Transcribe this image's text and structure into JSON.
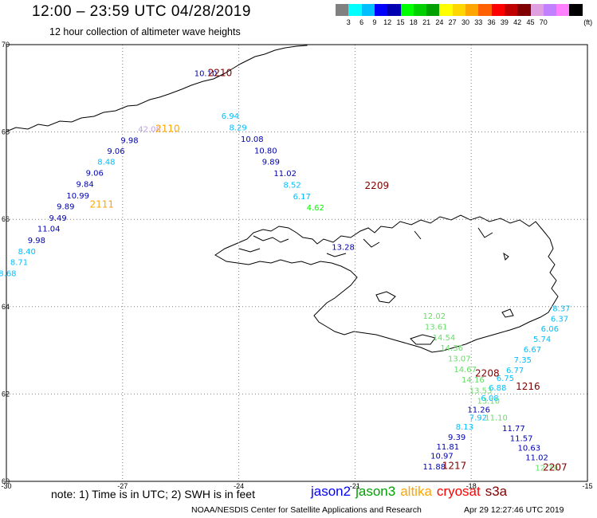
{
  "header": {
    "title": "12:00 – 23:59 UTC 04/28/2019",
    "subtitle": "12 hour collection of altimeter wave heights"
  },
  "colorbar": {
    "swatches": [
      "#808080",
      "#00ffff",
      "#00bfff",
      "#0000ff",
      "#0000b0",
      "#00ff00",
      "#00d000",
      "#00a000",
      "#ffff00",
      "#ffd700",
      "#ffa500",
      "#ff6000",
      "#ff0000",
      "#c00000",
      "#800000",
      "#e0a0e0",
      "#c080ff",
      "#ff80ff",
      "#000000"
    ],
    "labels": [
      "3",
      "6",
      "9",
      "12",
      "15",
      "18",
      "21",
      "24",
      "27",
      "30",
      "33",
      "36",
      "39",
      "42",
      "45",
      "70"
    ],
    "unit": "(ft)"
  },
  "map": {
    "colors": {
      "jason2": "#0000b0",
      "jason3": "#00a000",
      "altika": "#ffa500",
      "cryosat": "#ff0000",
      "s3a": "#800000",
      "cyan": "#00bfff",
      "lightgreen": "#66dd66",
      "lavender": "#c0a0e0",
      "land": "#ffffff",
      "coast": "#000000",
      "grid": "#808080"
    },
    "lon_ticks": [
      "-30",
      "-27",
      "-24",
      "-21",
      "-18",
      "-15"
    ],
    "lat_ticks": [
      "60",
      "62",
      "64",
      "66",
      "68",
      "70"
    ],
    "pass_labels": [
      {
        "text": "2210",
        "lon": -24.8,
        "lat": 69.28,
        "color": "#800000"
      },
      {
        "text": "2110",
        "lon": -26.15,
        "lat": 68.0,
        "color": "#ffa500"
      },
      {
        "text": "2209",
        "lon": -20.75,
        "lat": 66.7,
        "color": "#800000"
      },
      {
        "text": "2111",
        "lon": -27.85,
        "lat": 66.27,
        "color": "#ffa500"
      },
      {
        "text": "2208",
        "lon": -17.9,
        "lat": 62.4,
        "color": "#800000"
      },
      {
        "text": "1216",
        "lon": -16.85,
        "lat": 62.1,
        "color": "#800000"
      },
      {
        "text": "1217",
        "lon": -18.75,
        "lat": 60.28,
        "color": "#800000"
      },
      {
        "text": "2207",
        "lon": -16.15,
        "lat": 60.25,
        "color": "#800000"
      }
    ],
    "tracks": [
      {
        "name": "track-2210",
        "points": [
          {
            "v": "10.10",
            "lon": -25.15,
            "lat": 69.28,
            "color": "#0000b0"
          }
        ]
      },
      {
        "name": "track-2110",
        "points": [
          {
            "v": "42.08",
            "lon": -26.6,
            "lat": 68.0,
            "color": "#c0a0e0"
          },
          {
            "v": "9.98",
            "lon": -27.05,
            "lat": 67.75,
            "color": "#0000b0"
          },
          {
            "v": "9.06",
            "lon": -27.4,
            "lat": 67.5,
            "color": "#0000b0"
          },
          {
            "v": "8.48",
            "lon": -27.65,
            "lat": 67.25,
            "color": "#00bfff"
          },
          {
            "v": "9.06",
            "lon": -27.95,
            "lat": 67.0,
            "color": "#0000b0"
          },
          {
            "v": "9.84",
            "lon": -28.2,
            "lat": 66.74,
            "color": "#0000b0"
          },
          {
            "v": "10.99",
            "lon": -28.45,
            "lat": 66.48,
            "color": "#0000b0"
          },
          {
            "v": "9.89",
            "lon": -28.7,
            "lat": 66.23,
            "color": "#0000b0"
          },
          {
            "v": "9.49",
            "lon": -28.9,
            "lat": 65.97,
            "color": "#0000b0"
          }
        ]
      },
      {
        "name": "track-2111",
        "points": [
          {
            "v": "11.04",
            "lon": -29.2,
            "lat": 65.72,
            "color": "#0000b0"
          },
          {
            "v": "9.98",
            "lon": -29.45,
            "lat": 65.46,
            "color": "#0000b0"
          },
          {
            "v": "8.40",
            "lon": -29.7,
            "lat": 65.2,
            "color": "#00bfff"
          },
          {
            "v": "8.71",
            "lon": -29.9,
            "lat": 64.95,
            "color": "#00bfff"
          },
          {
            "v": "8.68",
            "lon": -30.2,
            "lat": 64.7,
            "color": "#00bfff"
          }
        ]
      },
      {
        "name": "track-2209",
        "points": [
          {
            "v": "6.94",
            "lon": -24.45,
            "lat": 68.3,
            "color": "#00bfff"
          },
          {
            "v": "8.29",
            "lon": -24.25,
            "lat": 68.04,
            "color": "#00bfff"
          },
          {
            "v": "10.08",
            "lon": -23.95,
            "lat": 67.77,
            "color": "#0000b0"
          },
          {
            "v": "10.80",
            "lon": -23.6,
            "lat": 67.51,
            "color": "#0000b0"
          },
          {
            "v": "9.89",
            "lon": -23.4,
            "lat": 67.25,
            "color": "#0000b0"
          },
          {
            "v": "11.02",
            "lon": -23.1,
            "lat": 66.99,
            "color": "#0000b0"
          },
          {
            "v": "8.52",
            "lon": -22.85,
            "lat": 66.72,
            "color": "#00bfff"
          },
          {
            "v": "6.17",
            "lon": -22.6,
            "lat": 66.46,
            "color": "#00bfff"
          },
          {
            "v": "4.62",
            "lon": -22.25,
            "lat": 66.2,
            "color": "#00ff00"
          },
          {
            "v": "13.28",
            "lon": -21.6,
            "lat": 65.3,
            "color": "#0000b0"
          }
        ]
      },
      {
        "name": "track-1216",
        "points": [
          {
            "v": "8.37",
            "lon": -15.9,
            "lat": 63.9,
            "color": "#00bfff"
          },
          {
            "v": "6.37",
            "lon": -15.95,
            "lat": 63.66,
            "color": "#00bfff"
          },
          {
            "v": "6.06",
            "lon": -16.2,
            "lat": 63.43,
            "color": "#00bfff"
          },
          {
            "v": "5.74",
            "lon": -16.4,
            "lat": 63.19,
            "color": "#00bfff"
          },
          {
            "v": "6.67",
            "lon": -16.65,
            "lat": 62.96,
            "color": "#00bfff"
          },
          {
            "v": "7.35",
            "lon": -16.9,
            "lat": 62.72,
            "color": "#00bfff"
          },
          {
            "v": "6.77",
            "lon": -17.1,
            "lat": 62.48,
            "color": "#00bfff"
          },
          {
            "v": "6.75",
            "lon": -17.35,
            "lat": 62.3,
            "color": "#00bfff"
          },
          {
            "v": "6.88",
            "lon": -17.55,
            "lat": 62.08,
            "color": "#00bfff"
          },
          {
            "v": "6.08",
            "lon": -17.75,
            "lat": 61.84,
            "color": "#00bfff"
          },
          {
            "v": "11.26",
            "lon": -18.1,
            "lat": 61.58,
            "color": "#0000b0"
          },
          {
            "v": "7.92",
            "lon": -18.05,
            "lat": 61.4,
            "color": "#00bfff"
          },
          {
            "v": "8.13",
            "lon": -18.4,
            "lat": 61.19,
            "color": "#00bfff"
          },
          {
            "v": "9.39",
            "lon": -18.6,
            "lat": 60.95,
            "color": "#0000b0"
          },
          {
            "v": "11.81",
            "lon": -18.9,
            "lat": 60.73,
            "color": "#0000b0"
          },
          {
            "v": "10.97",
            "lon": -19.05,
            "lat": 60.52,
            "color": "#0000b0"
          },
          {
            "v": "11.88",
            "lon": -19.25,
            "lat": 60.27,
            "color": "#0000b0"
          }
        ]
      },
      {
        "name": "track-2208",
        "points": [
          {
            "v": "12.02",
            "lon": -19.25,
            "lat": 63.72,
            "color": "#66dd66"
          },
          {
            "v": "13.61",
            "lon": -19.2,
            "lat": 63.48,
            "color": "#66dd66"
          },
          {
            "v": "14.54",
            "lon": -19.0,
            "lat": 63.23,
            "color": "#66dd66"
          },
          {
            "v": "14.36",
            "lon": -18.8,
            "lat": 62.99,
            "color": "#66dd66"
          },
          {
            "v": "13.07",
            "lon": -18.6,
            "lat": 62.75,
            "color": "#66dd66"
          },
          {
            "v": "14.67",
            "lon": -18.45,
            "lat": 62.5,
            "color": "#66dd66"
          },
          {
            "v": "14.16",
            "lon": -18.25,
            "lat": 62.26,
            "color": "#66dd66"
          },
          {
            "v": "13.53",
            "lon": -18.05,
            "lat": 62.02,
            "color": "#66dd66"
          },
          {
            "v": "13.10",
            "lon": -17.85,
            "lat": 61.78,
            "color": "#66dd66"
          },
          {
            "v": "11.10",
            "lon": -17.65,
            "lat": 61.4,
            "color": "#66dd66"
          }
        ]
      },
      {
        "name": "track-2207",
        "points": [
          {
            "v": "11.77",
            "lon": -17.2,
            "lat": 61.15,
            "color": "#0000b0"
          },
          {
            "v": "11.57",
            "lon": -17.0,
            "lat": 60.92,
            "color": "#0000b0"
          },
          {
            "v": "10.63",
            "lon": -16.8,
            "lat": 60.7,
            "color": "#0000b0"
          },
          {
            "v": "11.02",
            "lon": -16.6,
            "lat": 60.48,
            "color": "#0000b0"
          },
          {
            "v": "12.79",
            "lon": -16.35,
            "lat": 60.25,
            "color": "#66dd66"
          }
        ]
      }
    ]
  },
  "footer": {
    "note": "note: 1) Time is in UTC; 2) SWH is in feet",
    "legend": [
      {
        "label": "jason2",
        "color": "#0000ff"
      },
      {
        "label": "jason3",
        "color": "#00a000"
      },
      {
        "label": "altika",
        "color": "#ffa500"
      },
      {
        "label": "cryosat",
        "color": "#ff0000"
      },
      {
        "label": "s3a",
        "color": "#800000"
      }
    ],
    "credit": "NOAA/NESDIS Center for Satellite Applications and Research",
    "timestamp": "Apr 29 12:27:46 UTC 2019"
  }
}
